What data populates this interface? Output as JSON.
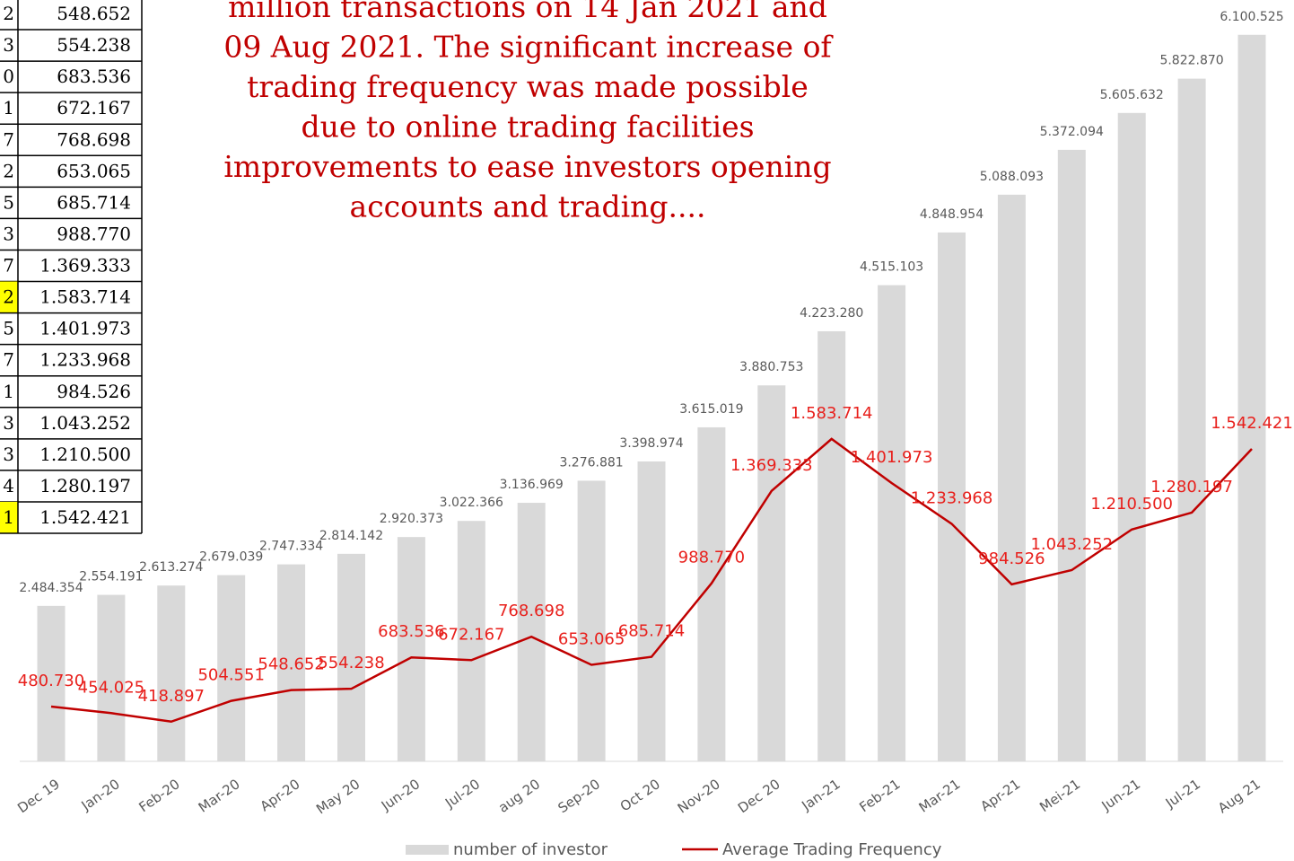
{
  "chart_data": {
    "type": "bar+line",
    "annotation": [
      "million transactions on 14 Jan 2021 and",
      "09 Aug 2021. The significant increase of",
      "trading frequency was made possible",
      "due to online trading facilities",
      "improvements to ease investors opening",
      "accounts and trading...."
    ],
    "categories": [
      "Dec 19",
      "Jan-20",
      "Feb-20",
      "Mar-20",
      "Apr-20",
      "May 20",
      "Jun-20",
      "Jul-20",
      "aug 20",
      "Sep-20",
      "Oct 20",
      "Nov-20",
      "Dec 20",
      "Jan-21",
      "Feb-21",
      "Mar-21",
      "Apr-21",
      "Mei-21",
      "Jun-21",
      "Jul-21",
      "Aug 21"
    ],
    "series": [
      {
        "name": "number of investor",
        "type": "bar",
        "color": "#d9d9d9",
        "values": [
          2484354,
          2554191,
          2613274,
          2679039,
          2747334,
          2814142,
          2920373,
          3022366,
          3136969,
          3276881,
          3398974,
          3615019,
          3880753,
          4223280,
          4515103,
          4848954,
          5088093,
          5372094,
          5605632,
          5822870,
          6100525
        ],
        "value_labels": [
          "2.484.354",
          "2.554.191",
          "2.613.274",
          "2.679.039",
          "2.747.334",
          "2.814.142",
          "2.920.373",
          "3.022.366",
          "3.136.969",
          "3.276.881",
          "3.398.974",
          "3.615.019",
          "3.880.753",
          "4.223.280",
          "4.515.103",
          "4.848.954",
          "5.088.093",
          "5.372.094",
          "5.605.632",
          "5.822.870",
          "6.100.525"
        ]
      },
      {
        "name": "Average Trading Frequency",
        "type": "line",
        "axis": "y2",
        "color": "#c00000",
        "values": [
          480730,
          454025,
          418897,
          504551,
          548652,
          554238,
          683536,
          672167,
          768698,
          653065,
          685714,
          988770,
          1369333,
          1583714,
          1401973,
          1233968,
          984526,
          1043252,
          1210500,
          1280197,
          1542421
        ],
        "value_labels": [
          "480.730",
          "454.025",
          "418.897",
          "504.551",
          "548.652",
          "554.238",
          "683.536",
          "672.167",
          "768.698",
          "653.065",
          "685.714",
          "988.770",
          "1.369.333",
          "1.583.714",
          "1.401.973",
          "1.233.968",
          "984.526",
          "1.043.252",
          "1.210.500",
          "1.280.197",
          "1.542.421"
        ]
      }
    ],
    "ylim": [
      1500000,
      6500000
    ],
    "y2lim": [
      0,
      3000000
    ],
    "legend": "bottom"
  },
  "table": {
    "rows": [
      [
        "2",
        "548.652"
      ],
      [
        "3",
        "554.238"
      ],
      [
        "0",
        "683.536"
      ],
      [
        "1",
        "672.167"
      ],
      [
        "7",
        "768.698"
      ],
      [
        "2",
        "653.065"
      ],
      [
        "5",
        "685.714"
      ],
      [
        "3",
        "988.770"
      ],
      [
        "7",
        "1.369.333"
      ],
      [
        "2",
        "1.583.714"
      ],
      [
        "5",
        "1.401.973"
      ],
      [
        "7",
        "1.233.968"
      ],
      [
        "1",
        "984.526"
      ],
      [
        "3",
        "1.043.252"
      ],
      [
        "3",
        "1.210.500"
      ],
      [
        "4",
        "1.280.197"
      ],
      [
        "1",
        "1.542.421"
      ]
    ],
    "highlighted_rows": [
      9,
      16
    ],
    "highlight_color": "#ffff00"
  }
}
